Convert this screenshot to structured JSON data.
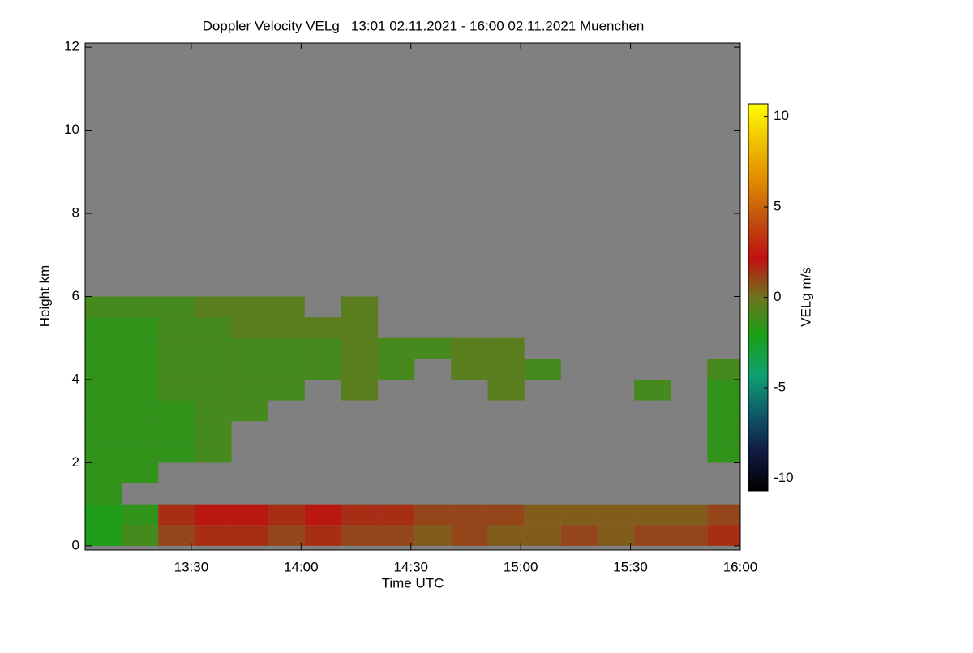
{
  "chart_data": {
    "type": "heatmap",
    "title": "Doppler Velocity VELg   13:01 02.11.2021 - 16:00 02.11.2021 Muenchen",
    "x_label": "Time UTC",
    "y_label": "Height km",
    "colorbar_label": "VELg m/s",
    "xlim": [
      "13:01",
      "16:00"
    ],
    "xticks": [
      "13:30",
      "14:00",
      "14:30",
      "15:00",
      "15:30",
      "16:00"
    ],
    "ylim": [
      -0.1,
      12.1
    ],
    "yticks": [
      0,
      2,
      4,
      6,
      8,
      10,
      12
    ],
    "zlim": [
      -10.7,
      10.7
    ],
    "zticks": [
      10,
      5,
      0,
      -5,
      -10
    ],
    "colormap": [
      "#000000",
      "#101a40",
      "#0f5a6a",
      "#10a070",
      "#18a018",
      "#6e7420",
      "#c01010",
      "#c05010",
      "#e08a00",
      "#f0c000",
      "#ffff00"
    ],
    "background": "#808080",
    "x": [
      "13:01",
      "13:11",
      "13:21",
      "13:31",
      "13:41",
      "13:51",
      "14:01",
      "14:11",
      "14:21",
      "14:31",
      "14:41",
      "14:51",
      "15:01",
      "15:11",
      "15:21",
      "15:31",
      "15:41",
      "15:51"
    ],
    "y": [
      0,
      0.5,
      1,
      1.5,
      2,
      2.5,
      3,
      3.5,
      4,
      4.5,
      5,
      5.5
    ],
    "z": [
      [
        -2,
        -1,
        1,
        1.5,
        1.5,
        1,
        1.5,
        1,
        1,
        0.5,
        1,
        0.5,
        0.5,
        1,
        0.5,
        1,
        1,
        1.5
      ],
      [
        -2,
        -1.5,
        1.5,
        2,
        2,
        1.5,
        2,
        1.5,
        1.5,
        1,
        1,
        1,
        0.5,
        0.5,
        0.5,
        0.5,
        0.5,
        1
      ],
      [
        -1.5,
        null,
        null,
        null,
        null,
        null,
        null,
        null,
        null,
        null,
        null,
        null,
        null,
        null,
        null,
        null,
        null,
        null
      ],
      [
        -1.5,
        -1.5,
        null,
        null,
        null,
        null,
        null,
        null,
        null,
        null,
        null,
        null,
        null,
        null,
        null,
        null,
        null,
        null
      ],
      [
        -1.5,
        -1.5,
        -1.5,
        -1,
        null,
        null,
        null,
        null,
        null,
        null,
        null,
        null,
        null,
        null,
        null,
        null,
        null,
        -1.5
      ],
      [
        -1.5,
        -1.5,
        -1.5,
        -1,
        null,
        null,
        null,
        null,
        null,
        null,
        null,
        null,
        null,
        null,
        null,
        null,
        null,
        -1.5
      ],
      [
        -1.5,
        -1.5,
        -1.5,
        -1,
        -1,
        null,
        null,
        null,
        null,
        null,
        null,
        null,
        null,
        null,
        null,
        null,
        null,
        -1.5
      ],
      [
        -1.5,
        -1.5,
        -1,
        -1,
        -1,
        -1,
        null,
        -0.5,
        null,
        null,
        null,
        -0.5,
        null,
        null,
        null,
        -1,
        null,
        -1.5
      ],
      [
        -1.5,
        -1.5,
        -1,
        -1,
        -1,
        -1,
        -1,
        -0.5,
        -1,
        null,
        -0.5,
        -0.5,
        -1,
        null,
        null,
        null,
        null,
        -1
      ],
      [
        -1.5,
        -1.5,
        -1,
        -1,
        -1,
        -1,
        -1,
        -0.5,
        -1,
        -1,
        -0.5,
        -0.5,
        null,
        null,
        null,
        null,
        null,
        null
      ],
      [
        -1.5,
        -1.5,
        -1,
        -1,
        -0.5,
        -0.5,
        -0.5,
        -0.5,
        null,
        null,
        null,
        null,
        null,
        null,
        null,
        null,
        null,
        null
      ],
      [
        -1,
        -1,
        -1,
        -0.5,
        -0.5,
        -0.5,
        null,
        -0.5,
        null,
        null,
        null,
        null,
        null,
        null,
        null,
        null,
        null,
        null
      ]
    ]
  }
}
